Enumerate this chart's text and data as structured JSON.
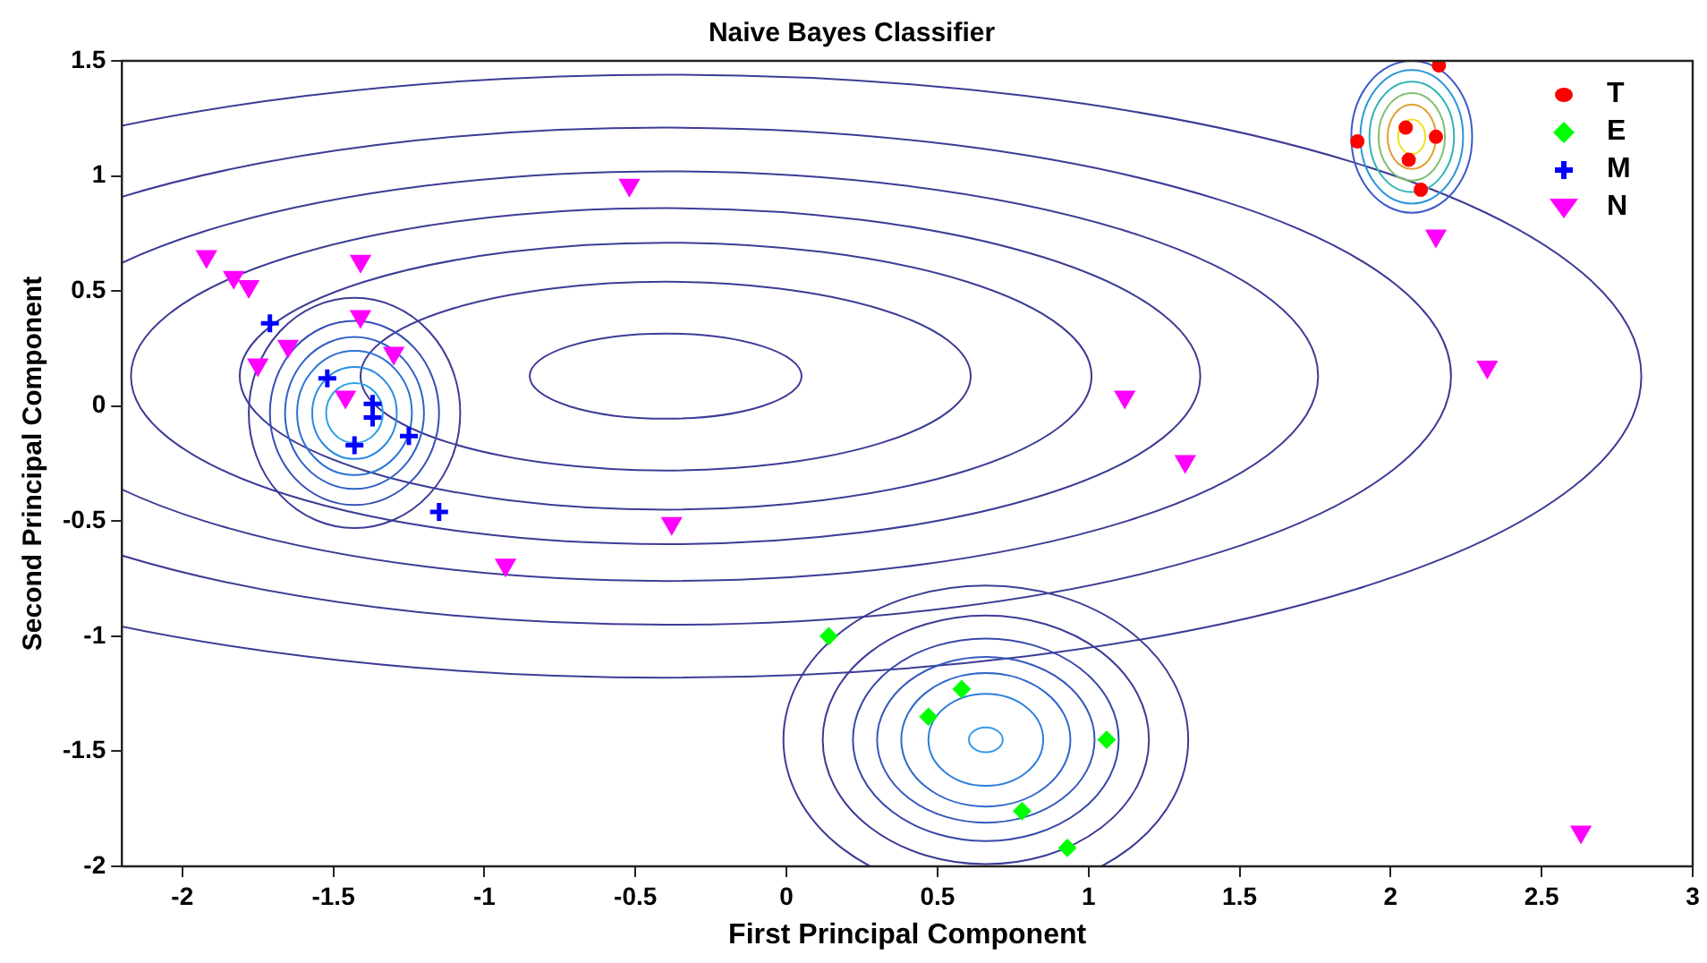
{
  "chart_data": {
    "type": "scatter",
    "title": "Naive Bayes Classifier",
    "xlabel": "First Principal Component",
    "ylabel": "Second Principal Component",
    "xlim": [
      -2.2,
      3
    ],
    "xticks": [
      -2,
      -1.5,
      -1,
      -0.5,
      0,
      0.5,
      1,
      1.5,
      2,
      2.5,
      3
    ],
    "ylim": [
      -2,
      1.5
    ],
    "yticks": [
      -2,
      -1.5,
      -1,
      -0.5,
      0,
      0.5,
      1,
      1.5
    ],
    "grid": false,
    "legend": "top right",
    "series": [
      {
        "name": "T",
        "marker": "circle",
        "color": "#ff0000",
        "x": [
          1.89,
          2.16,
          2.05,
          2.06,
          2.15,
          2.1
        ],
        "values": [
          1.15,
          1.48,
          1.21,
          1.07,
          1.17,
          0.94
        ]
      },
      {
        "name": "E",
        "marker": "diamond",
        "color": "#00ff00",
        "x": [
          0.14,
          0.58,
          0.47,
          1.06,
          0.78,
          0.93
        ],
        "values": [
          -1.0,
          -1.23,
          -1.35,
          -1.45,
          -1.76,
          -1.92
        ]
      },
      {
        "name": "M",
        "marker": "cross",
        "color": "#0000ff",
        "x": [
          -1.71,
          -1.52,
          -1.37,
          -1.37,
          -1.43,
          -1.25,
          -1.15
        ],
        "values": [
          0.36,
          0.12,
          0.01,
          -0.05,
          -0.17,
          -0.13,
          -0.46
        ]
      },
      {
        "name": "N",
        "marker": "triangle",
        "color": "#ff00ff",
        "x": [
          -1.92,
          -1.83,
          -1.78,
          -1.41,
          -1.41,
          -1.65,
          -1.75,
          -1.3,
          -1.46,
          -0.93,
          -0.52,
          1.12,
          1.32,
          -0.38,
          2.15,
          2.32,
          2.63
        ],
        "values": [
          0.65,
          0.56,
          0.52,
          0.63,
          0.39,
          0.26,
          0.18,
          0.23,
          0.04,
          -0.69,
          0.96,
          0.04,
          -0.24,
          -0.51,
          0.74,
          0.17,
          -1.85
        ]
      }
    ]
  }
}
